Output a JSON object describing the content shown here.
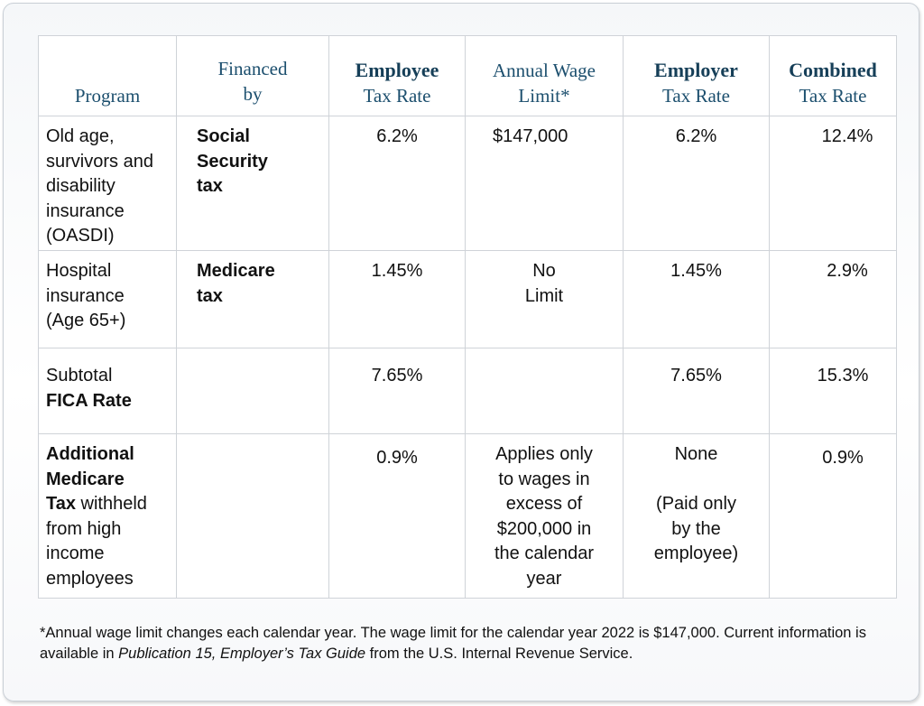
{
  "header": {
    "program": "Program",
    "financed_by": [
      "Financed",
      "by"
    ],
    "employee_rate": [
      "Employee",
      "Tax Rate"
    ],
    "wage_limit": [
      "Annual Wage",
      "Limit*"
    ],
    "employer_rate": [
      "Employer",
      "Tax Rate"
    ],
    "combined_rate": [
      "Combined",
      "Tax Rate"
    ]
  },
  "rows": [
    {
      "program": [
        "Old age,",
        "survivors and",
        "disability",
        "insurance",
        "(OASDI)"
      ],
      "financed_by": [
        "Social",
        "Security",
        "tax"
      ],
      "employee_rate": "6.2%",
      "wage_limit": [
        "$147,000"
      ],
      "employer_rate": "6.2%",
      "combined_rate": "12.4%"
    },
    {
      "program": [
        "Hospital",
        "insurance",
        "(Age 65+)"
      ],
      "financed_by": [
        "Medicare",
        "tax"
      ],
      "employee_rate": "1.45%",
      "wage_limit": [
        "No",
        "Limit"
      ],
      "employer_rate": "1.45%",
      "combined_rate": "2.9%"
    },
    {
      "program": [
        "Subtotal",
        "FICA Rate"
      ],
      "financed_by": [],
      "employee_rate": "7.65%",
      "wage_limit": [],
      "employer_rate": "7.65%",
      "combined_rate": "15.3%"
    },
    {
      "program": [
        "Additional",
        "Medicare",
        "Tax",
        " withheld",
        "from high",
        "income",
        "employees"
      ],
      "financed_by": [],
      "employee_rate": "0.9%",
      "wage_limit": [
        "Applies only",
        "to wages in",
        "excess of",
        "$200,000 in",
        "the calendar",
        "year"
      ],
      "employer_rate": [
        "None",
        "(Paid only",
        "by the",
        "employee)"
      ],
      "combined_rate": "0.9%"
    }
  ],
  "footnote": {
    "text_before": "*Annual wage limit changes each calendar year. The wage limit for the calendar year 2022 is $147,000. Current information is available in ",
    "publication": "Publication 15, Employer’s Tax Guide",
    "text_after": " from the U.S. Internal Revenue Service."
  }
}
